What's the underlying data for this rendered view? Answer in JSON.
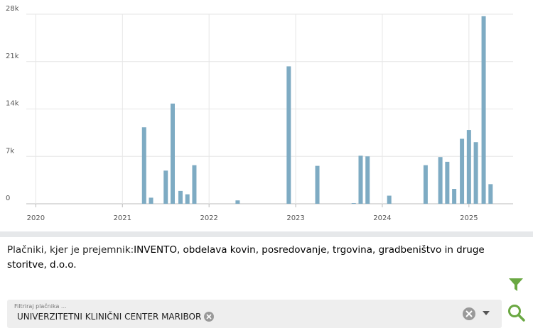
{
  "chart_data": {
    "type": "bar",
    "color": "#7eabc3",
    "grid": true,
    "x": [
      2021.25,
      2021.33,
      2021.5,
      2021.58,
      2021.67,
      2021.75,
      2021.83,
      2022.33,
      2022.92,
      2023.25,
      2023.67,
      2023.75,
      2023.83,
      2024.08,
      2024.5,
      2024.67,
      2024.75,
      2024.83,
      2024.92,
      2025.0,
      2025.08,
      2025.17,
      2025.25
    ],
    "values": [
      11300,
      900,
      4900,
      14800,
      1900,
      1400,
      5700,
      500,
      20300,
      5600,
      100,
      7100,
      7000,
      1200,
      5700,
      6900,
      6200,
      2200,
      9600,
      10900,
      9100,
      27700,
      2900
    ],
    "xlim": [
      2019.89,
      2025.51
    ],
    "xticks": [
      2020,
      2021,
      2022,
      2023,
      2024,
      2025
    ],
    "ylim": [
      0,
      28000
    ],
    "yticks": [
      0,
      {
        "value": 7000,
        "label": "7k"
      },
      {
        "value": 14000,
        "label": "14k"
      },
      {
        "value": 21000,
        "label": "21k"
      },
      {
        "value": 28000,
        "label": "28k"
      }
    ]
  },
  "payers": {
    "prefix": "Plačniki, kjer je prejemnik:",
    "recipient": "INVENTO, obdelava kovin, posredovanje, trgovina, gradbeništvo in druge storitve, d.o.o."
  },
  "filter": {
    "placeholder": "Filtriraj plačnika ...",
    "selected": "UNIVERZITETNI KLINIČNI CENTER MARIBOR"
  }
}
